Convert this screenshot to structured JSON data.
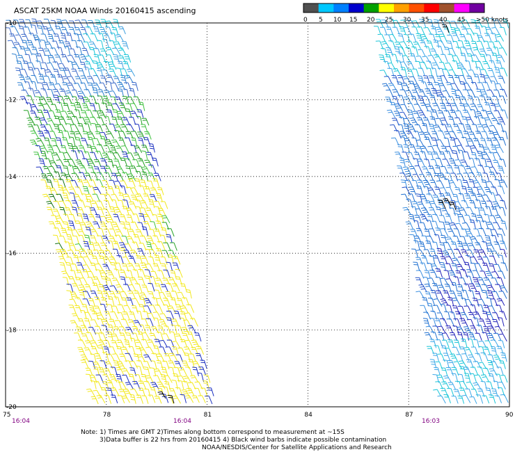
{
  "title": "ASCAT 25KM NOAA Winds 20160415 ascending",
  "legend": {
    "tick_labels": [
      "0",
      "5",
      "10",
      "15",
      "20",
      "25",
      "30",
      "35",
      "40",
      "45",
      ">50 knots"
    ],
    "colors": [
      "#505050",
      "#00c8ff",
      "#0080ff",
      "#0000cc",
      "#00a000",
      "#ffff00",
      "#ffa000",
      "#ff5000",
      "#ff0000",
      "#a0522d",
      "#ff00ff",
      "#7000a0"
    ]
  },
  "map": {
    "lat_labels": [
      "-10",
      "-12",
      "-14",
      "-16",
      "-18",
      "-20"
    ],
    "lon_labels": [
      "75",
      "78",
      "81",
      "84",
      "87",
      "90"
    ],
    "pass_times": [
      "16:04",
      "16:04",
      "16:03"
    ],
    "wind_data": {
      "swath_west": {
        "lon_range": [
          75,
          81
        ],
        "lat_range": [
          -20,
          -10
        ],
        "speed_kt_range": [
          5,
          25
        ],
        "direction": "southeasterly trades"
      },
      "swath_east": {
        "lon_range": [
          86.5,
          90
        ],
        "lat_range": [
          -20,
          -10
        ],
        "speed_kt_range": [
          5,
          15
        ],
        "direction": "southeasterly trades"
      }
    }
  },
  "notes": {
    "line1": "Note: 1) Times are GMT 2)Times along bottom correspond to measurement at ~15S",
    "line2": "3)Data buffer is 22 hrs from 20160415 4) Black wind barbs indicate possible contamination",
    "line3": "NOAA/NESDIS/Center for Satellite Applications and Research"
  }
}
